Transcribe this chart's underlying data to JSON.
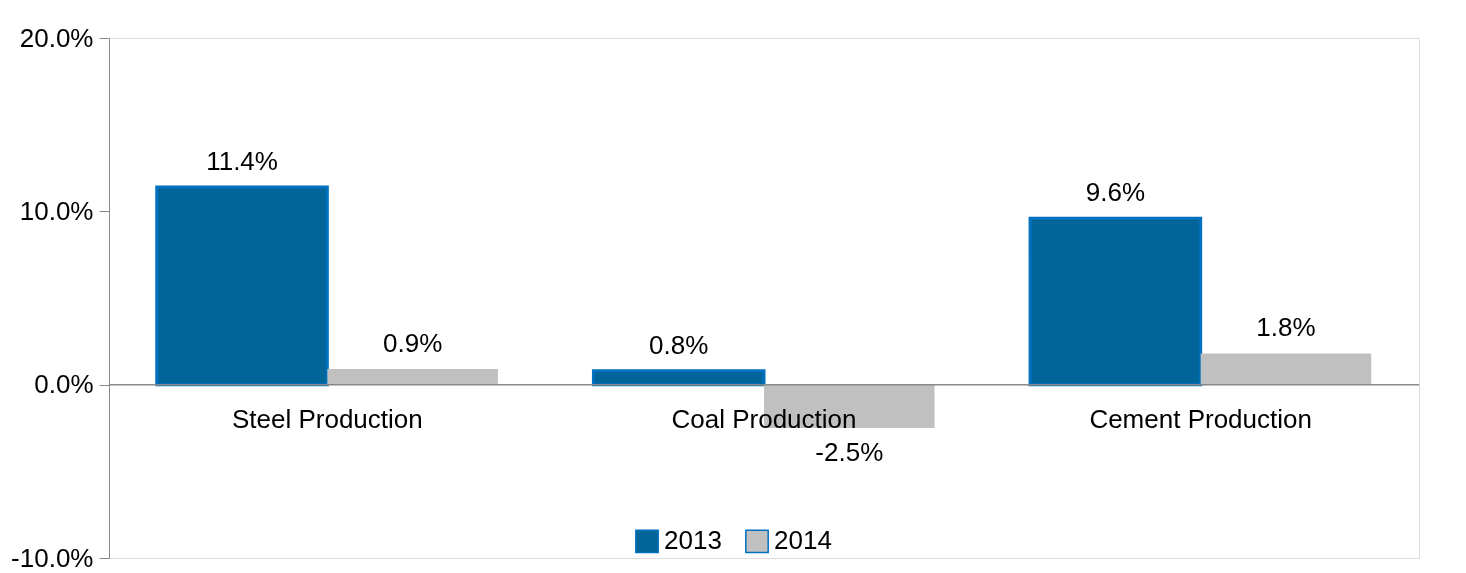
{
  "chart_data": {
    "type": "bar",
    "categories": [
      "Steel Production",
      "Coal Production",
      "Cement Production"
    ],
    "series": [
      {
        "name": "2013",
        "color": "#02659a",
        "values": [
          11.4,
          0.8,
          9.6
        ],
        "value_labels": [
          "11.4%",
          "0.8%",
          "9.6%"
        ]
      },
      {
        "name": "2014",
        "color": "#c0c0c0",
        "values": [
          0.9,
          -2.5,
          1.8
        ],
        "value_labels": [
          "0.9%",
          "-2.5%",
          "1.8%"
        ]
      }
    ],
    "ylim": [
      -10,
      20
    ],
    "yticks": [
      {
        "value": -10,
        "label": "-10.0%"
      },
      {
        "value": 0,
        "label": "0.0%"
      },
      {
        "value": 10,
        "label": "10.0%"
      },
      {
        "value": 20,
        "label": "20.0%"
      }
    ],
    "grid": false,
    "legend": "bottom"
  }
}
